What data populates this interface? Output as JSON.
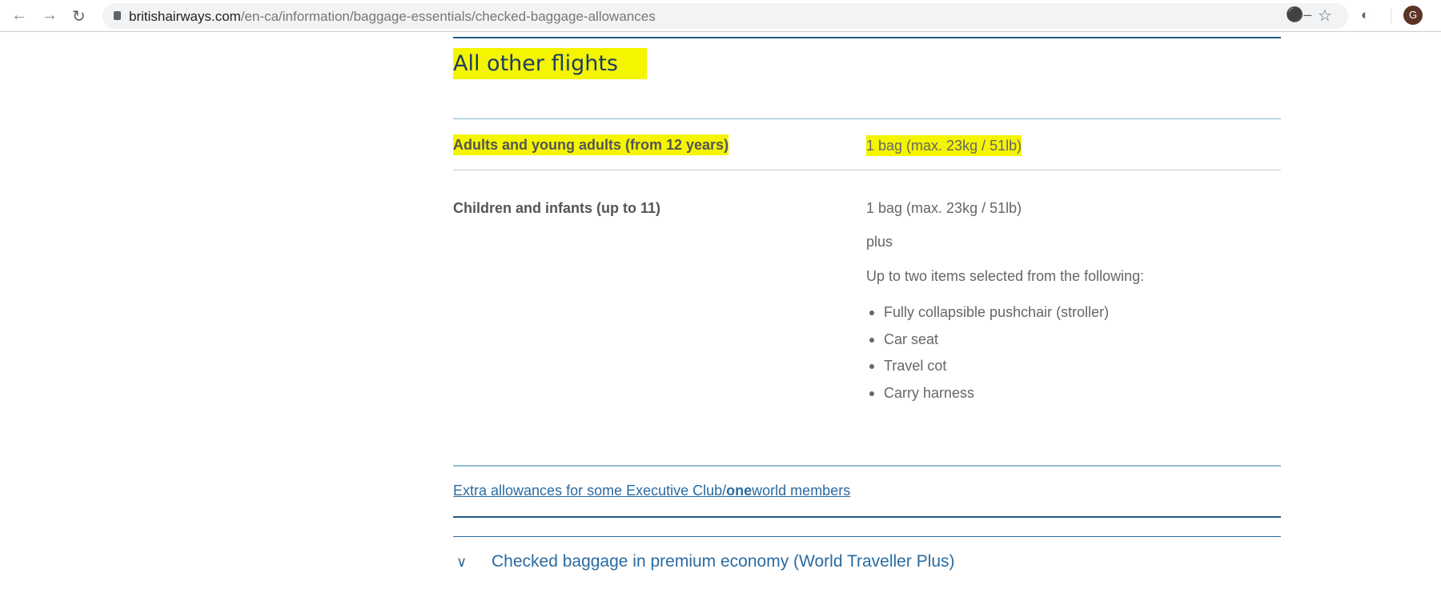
{
  "browser": {
    "url_domain": "britishairways.com",
    "url_path": "/en-ca/information/baggage-essentials/checked-baggage-allowances",
    "avatar_initial": "G"
  },
  "section": {
    "title": "All other flights",
    "rows": [
      {
        "label": "Adults and young adults (from 12 years)",
        "value": "1 bag (max. 23kg / 51lb)"
      },
      {
        "label": "Children and infants (up to 11)",
        "value": "1 bag (max. 23kg / 51lb)",
        "plus": "plus",
        "intro": "Up to two items selected from the following:",
        "items": [
          "Fully collapsible pushchair (stroller)",
          "Car seat",
          "Travel cot",
          "Carry harness"
        ]
      }
    ],
    "link": {
      "prefix": "Extra allowances for some Executive Club/",
      "bold": "one",
      "suffix": "world members"
    }
  },
  "accordion": {
    "label": "Checked baggage in premium economy (World Traveller Plus)"
  },
  "colors": {
    "highlight": "#f5f500",
    "link": "#2a6aa0",
    "heading": "#1b3e63",
    "rule_dark": "#1f5a85",
    "rule_light": "#7fb4c8"
  }
}
